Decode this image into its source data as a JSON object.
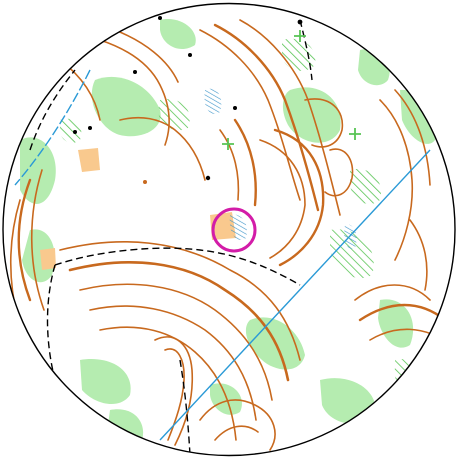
{
  "map": {
    "kind": "orienteering-map-circular-view",
    "colors": {
      "paper": "#ffffff",
      "contour": "#c8691e",
      "vegetation": "#b5ecb0",
      "green_hatch": "#58c454",
      "marsh": "#3d95c9",
      "water_line": "#2b9ad6",
      "path": "#000000",
      "control_circle": "#d31ca8",
      "open_land": "#f9c98e",
      "border": "#000000"
    },
    "control": {
      "symbol": "control-circle"
    },
    "symbols": [
      "contour-lines",
      "vegetation-patches",
      "black-dashed-trails",
      "blue-power-line",
      "marsh-hatching",
      "green-crosses",
      "black-dots"
    ]
  }
}
